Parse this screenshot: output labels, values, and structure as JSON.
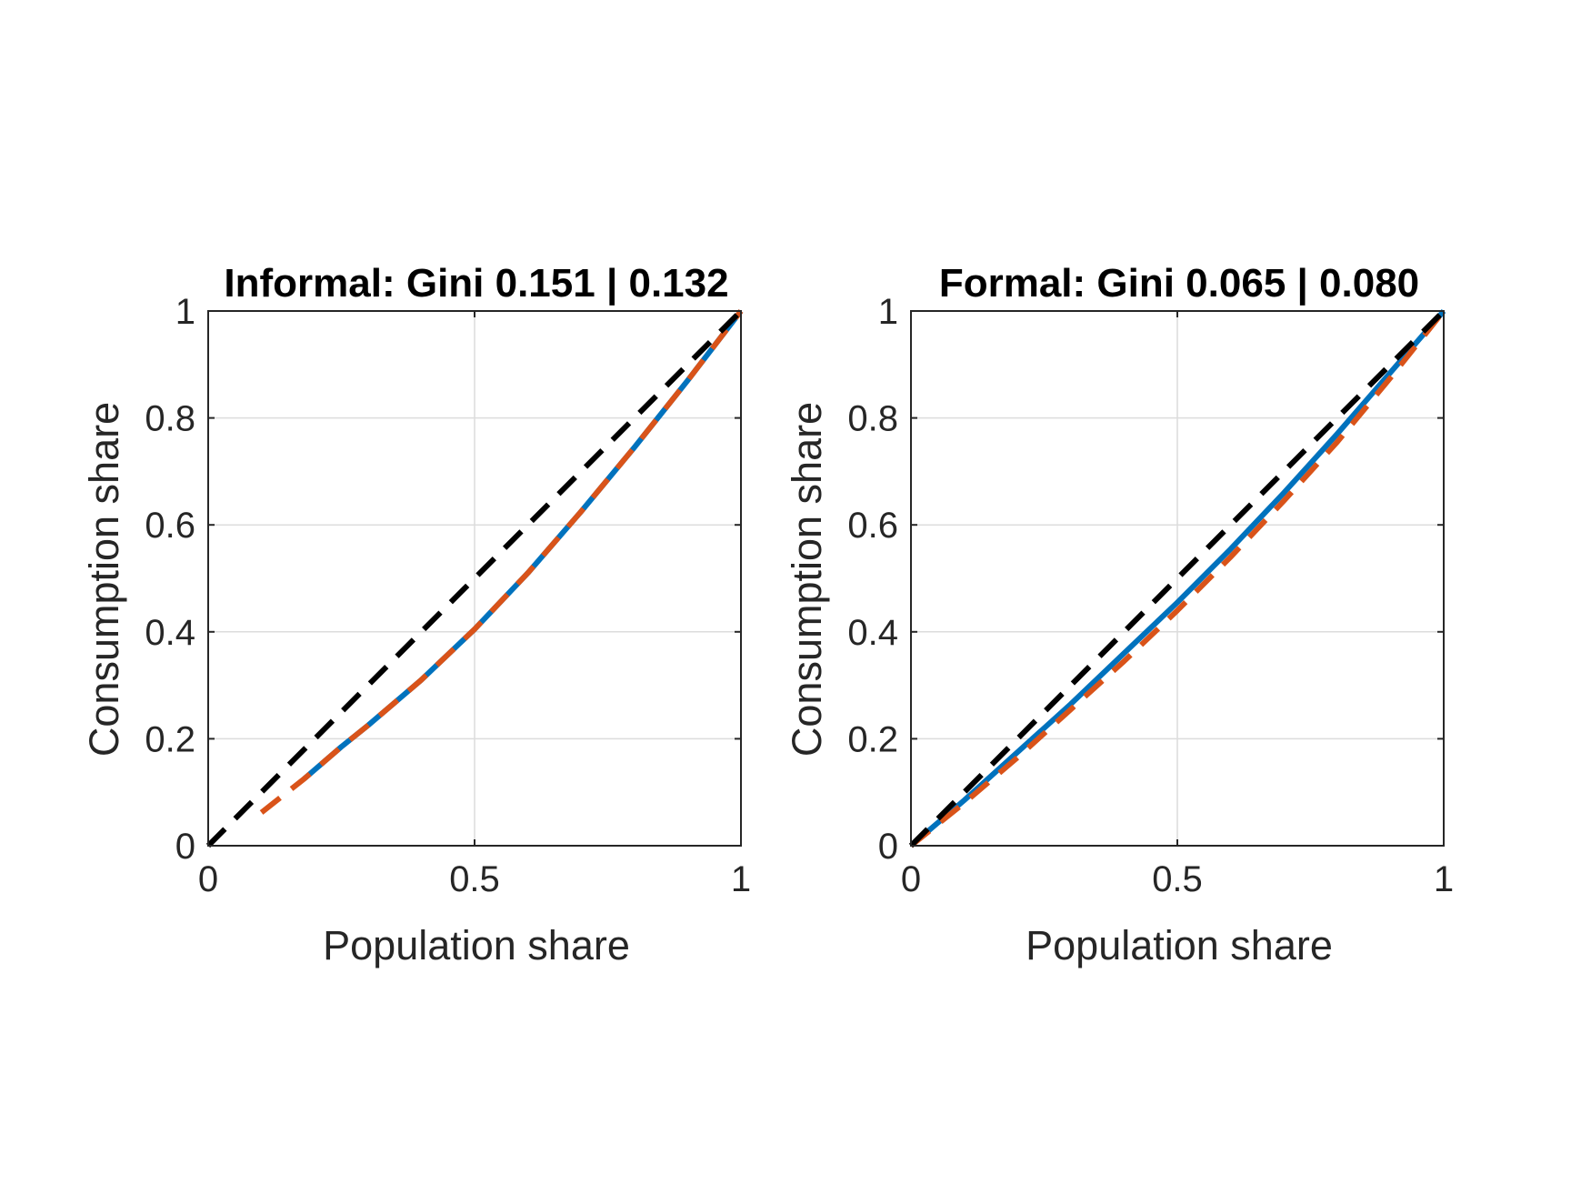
{
  "chart_data": [
    {
      "type": "line",
      "title": "Informal: Gini 0.151 | 0.132",
      "xlabel": "Population share",
      "ylabel": "Consumption share",
      "xlim": [
        0,
        1
      ],
      "ylim": [
        0,
        1
      ],
      "xticks": [
        0,
        0.5,
        1
      ],
      "xtick_labels": [
        "0",
        "0.5",
        "1"
      ],
      "yticks": [
        0,
        0.2,
        0.4,
        0.6,
        0.8,
        1
      ],
      "ytick_labels": [
        "0",
        "0.2",
        "0.4",
        "0.6",
        "0.8",
        "1"
      ],
      "grid": true,
      "series": [
        {
          "style": "solid",
          "color": "#0072BD",
          "x": [
            0.18,
            0.25,
            0.3,
            0.4,
            0.5,
            0.6,
            0.7,
            0.8,
            0.9,
            1.0
          ],
          "y": [
            0.125,
            0.185,
            0.225,
            0.31,
            0.405,
            0.51,
            0.625,
            0.745,
            0.87,
            1.0
          ]
        },
        {
          "style": "dashed",
          "color": "#D95319",
          "x": [
            0.1,
            0.18,
            0.25,
            0.3,
            0.4,
            0.5,
            0.6,
            0.7,
            0.8,
            0.9,
            1.0
          ],
          "y": [
            0.062,
            0.125,
            0.185,
            0.225,
            0.31,
            0.405,
            0.51,
            0.625,
            0.745,
            0.87,
            1.0
          ]
        },
        {
          "style": "dashed",
          "color": "#000000",
          "x": [
            0,
            1
          ],
          "y": [
            0,
            1
          ]
        }
      ]
    },
    {
      "type": "line",
      "title": "Formal: Gini 0.065 | 0.080",
      "xlabel": "Population share",
      "ylabel": "Consumption share",
      "xlim": [
        0,
        1
      ],
      "ylim": [
        0,
        1
      ],
      "xticks": [
        0,
        0.5,
        1
      ],
      "xtick_labels": [
        "0",
        "0.5",
        "1"
      ],
      "yticks": [
        0,
        0.2,
        0.4,
        0.6,
        0.8,
        1
      ],
      "ytick_labels": [
        "0",
        "0.2",
        "0.4",
        "0.6",
        "0.8",
        "1"
      ],
      "grid": true,
      "series": [
        {
          "style": "solid",
          "color": "#0072BD",
          "x": [
            0,
            0.1,
            0.2,
            0.3,
            0.4,
            0.5,
            0.6,
            0.7,
            0.8,
            0.9,
            1.0
          ],
          "y": [
            0,
            0.085,
            0.175,
            0.265,
            0.36,
            0.455,
            0.555,
            0.66,
            0.77,
            0.885,
            1.0
          ]
        },
        {
          "style": "dashed",
          "color": "#D95319",
          "x": [
            0,
            0.1,
            0.2,
            0.3,
            0.4,
            0.5,
            0.6,
            0.7,
            0.8,
            0.9,
            1.0
          ],
          "y": [
            0,
            0.08,
            0.165,
            0.255,
            0.345,
            0.44,
            0.54,
            0.645,
            0.755,
            0.875,
            1.0
          ]
        },
        {
          "style": "dashed",
          "color": "#000000",
          "x": [
            0,
            1
          ],
          "y": [
            0,
            1
          ]
        }
      ]
    }
  ]
}
